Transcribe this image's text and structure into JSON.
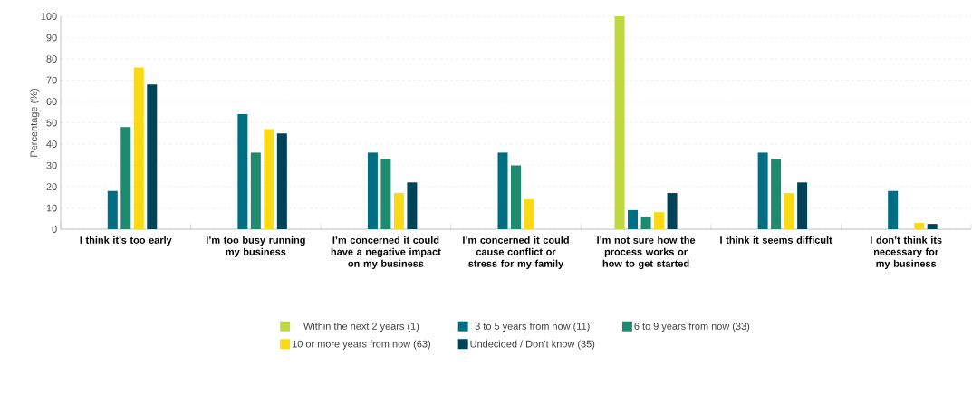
{
  "chart_data": {
    "type": "bar",
    "ylabel": "Percentage (%)",
    "categories": [
      "I think it’s too early",
      "I’m too busy running my business",
      "I’m concerned it could have a negative impact on my business",
      "I’m concerned it could cause conflict or stress for my family",
      "I’m not sure how the process works or how to get started",
      "I think it seems difficult",
      "I don’t think its necessary for my business"
    ],
    "series": [
      {
        "name": "Within the next 2 years (1)",
        "color": "#c0d83e",
        "values": [
          0,
          0,
          0,
          0,
          100,
          0,
          0
        ]
      },
      {
        "name": "3 to 5 years from now (11)",
        "color": "#006e82",
        "values": [
          18,
          54,
          36,
          36,
          9,
          36,
          18
        ]
      },
      {
        "name": "6 to 9 years from now (33)",
        "color": "#1e8a70",
        "values": [
          48,
          36,
          33,
          30,
          6,
          33,
          0
        ]
      },
      {
        "name": "10 or more years from now (63)",
        "color": "#fcd915",
        "values": [
          76,
          47,
          17,
          14,
          8,
          17,
          3
        ]
      },
      {
        "name": "Undecided / Don’t know (35)",
        "color": "#004257",
        "values": [
          68,
          45,
          22,
          0,
          17,
          22,
          2.5
        ]
      }
    ],
    "ylim": [
      0,
      100
    ],
    "yticks": [
      0,
      10,
      20,
      30,
      40,
      50,
      60,
      70,
      80,
      90,
      100
    ],
    "grid": "y",
    "legend": "bottom"
  }
}
